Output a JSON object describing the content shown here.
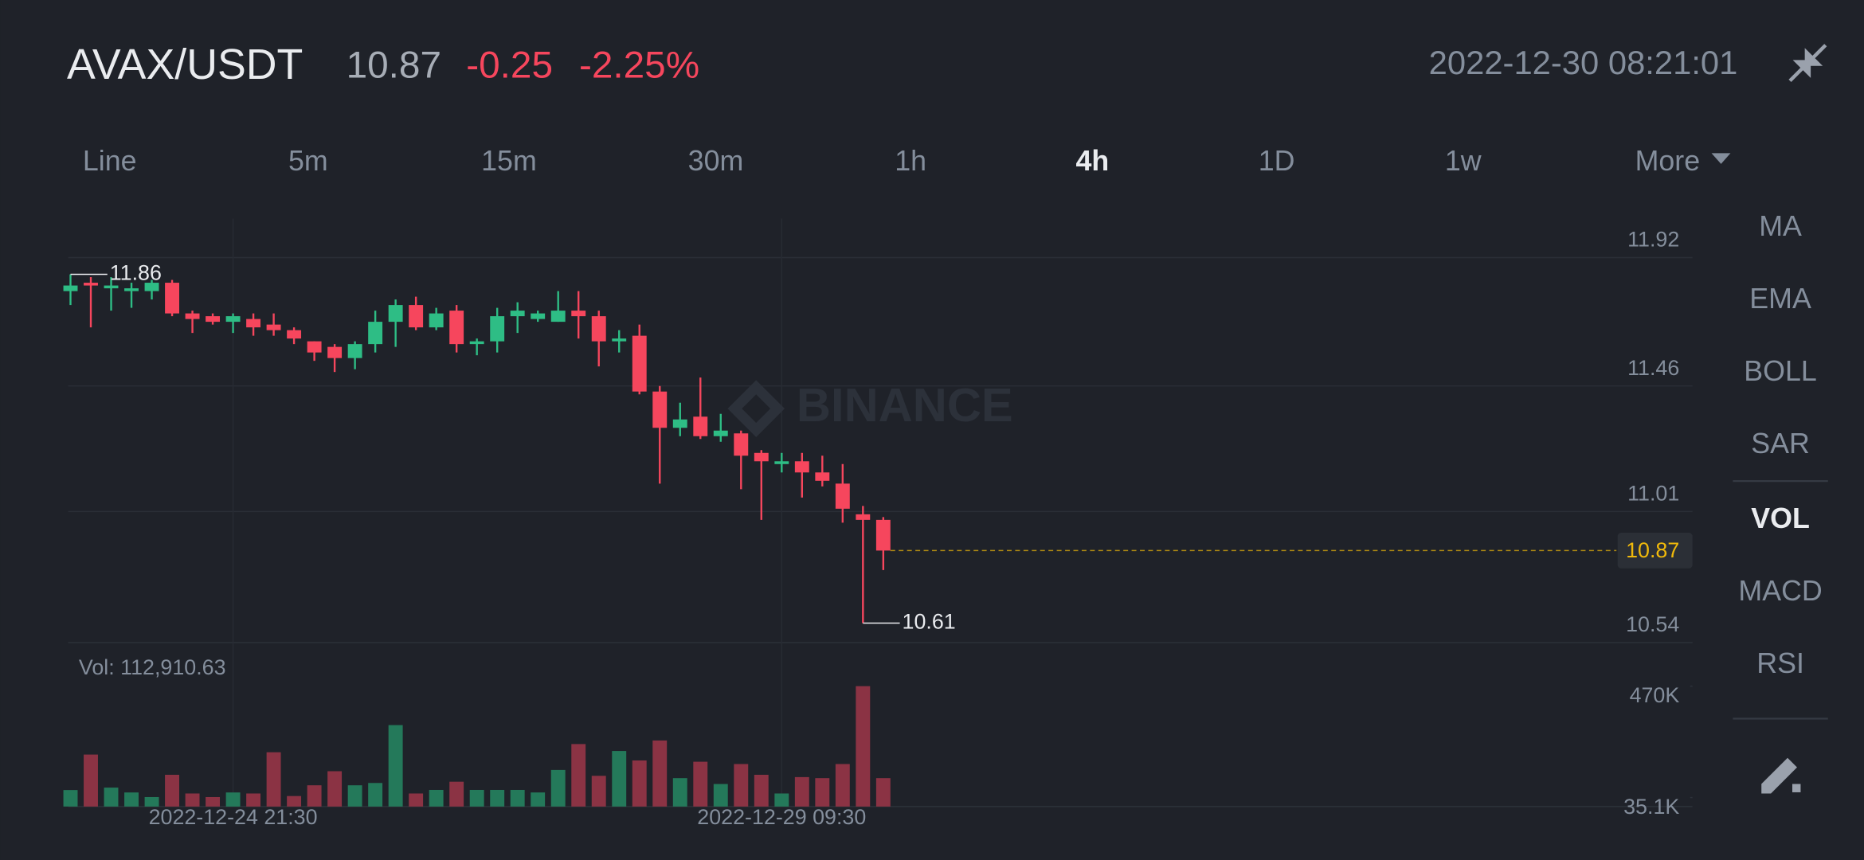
{
  "header": {
    "pair": "AVAX/USDT",
    "price": "10.87",
    "change": "-0.25",
    "change_pct": "-2.25%",
    "datetime": "2022-12-30 08:21:01"
  },
  "tabs": [
    "Line",
    "5m",
    "15m",
    "30m",
    "1h",
    "4h",
    "1D",
    "1w",
    "More"
  ],
  "active_tab": "4h",
  "indicators": [
    "MA",
    "EMA",
    "BOLL",
    "SAR",
    "VOL",
    "MACD",
    "RSI"
  ],
  "active_indicator": "VOL",
  "watermark": "BINANCE",
  "chart_data": [
    {
      "type": "candlestick",
      "categories": [
        null,
        null,
        null,
        null,
        null,
        null,
        null,
        null,
        "2022-12-24 21:30",
        null,
        null,
        null,
        null,
        null,
        null,
        null,
        null,
        null,
        null,
        null,
        null,
        null,
        null,
        null,
        null,
        null,
        null,
        null,
        null,
        null,
        null,
        null,
        null,
        null,
        null,
        "2022-12-29 09:30",
        null,
        null,
        null,
        null,
        null
      ],
      "open": [
        11.8,
        11.83,
        11.81,
        11.8,
        11.8,
        11.83,
        11.72,
        11.71,
        11.69,
        11.7,
        11.68,
        11.66,
        11.62,
        11.6,
        11.56,
        11.61,
        11.69,
        11.75,
        11.67,
        11.73,
        11.61,
        11.62,
        11.71,
        11.7,
        11.69,
        11.73,
        11.71,
        11.62,
        11.64,
        11.44,
        11.31,
        11.35,
        11.28,
        11.29,
        11.22,
        11.18,
        11.19,
        11.15,
        11.11,
        11.0,
        10.98
      ],
      "high": [
        11.86,
        11.85,
        11.85,
        11.83,
        11.84,
        11.84,
        11.73,
        11.72,
        11.72,
        11.72,
        11.72,
        11.67,
        11.62,
        11.61,
        11.62,
        11.73,
        11.77,
        11.78,
        11.74,
        11.75,
        11.63,
        11.74,
        11.76,
        11.73,
        11.8,
        11.8,
        11.73,
        11.66,
        11.68,
        11.46,
        11.4,
        11.49,
        11.36,
        11.3,
        11.23,
        11.22,
        11.22,
        11.21,
        11.18,
        11.03,
        10.99
      ],
      "low": [
        11.75,
        11.67,
        11.73,
        11.74,
        11.77,
        11.71,
        11.65,
        11.68,
        11.65,
        11.64,
        11.64,
        11.61,
        11.55,
        11.51,
        11.52,
        11.58,
        11.6,
        11.66,
        11.66,
        11.58,
        11.57,
        11.58,
        11.65,
        11.69,
        11.69,
        11.63,
        11.53,
        11.58,
        11.43,
        11.11,
        11.28,
        11.27,
        11.26,
        11.09,
        10.98,
        11.15,
        11.06,
        11.1,
        10.97,
        10.61,
        10.8
      ],
      "close": [
        11.82,
        11.82,
        11.82,
        11.81,
        11.83,
        11.72,
        11.7,
        11.69,
        11.71,
        11.67,
        11.66,
        11.63,
        11.58,
        11.56,
        11.61,
        11.69,
        11.75,
        11.67,
        11.72,
        11.61,
        11.62,
        11.71,
        11.73,
        11.72,
        11.73,
        11.71,
        11.62,
        11.63,
        11.44,
        11.31,
        11.34,
        11.28,
        11.3,
        11.21,
        11.19,
        11.19,
        11.15,
        11.12,
        11.02,
        10.98,
        10.87
      ],
      "up_color": "#2ebd85",
      "down_color": "#f6465d",
      "max_label": 11.86,
      "min_label": 10.61,
      "last_price": 10.87,
      "last_color": "#f0b90b",
      "ylim": [
        10.54,
        12.06
      ],
      "yticks": [
        11.92,
        11.46,
        11.01,
        10.54
      ],
      "grid": true
    },
    {
      "type": "bar",
      "title": "Vol: 112,910.63",
      "values": [
        64500,
        203000,
        74000,
        55000,
        37000,
        124000,
        51000,
        37000,
        55000,
        51000,
        212000,
        41000,
        83000,
        138000,
        83000,
        92000,
        318000,
        51000,
        65000,
        97000,
        65000,
        65000,
        65000,
        55000,
        143000,
        244000,
        120000,
        217000,
        180000,
        258000,
        111000,
        175000,
        88000,
        166000,
        124000,
        51000,
        115000,
        111000,
        166000,
        470000,
        111000
      ],
      "up_color": "#24795a",
      "down_color": "#8b3344",
      "ylim": [
        0,
        640000
      ],
      "yticks": [
        {
          "value": 470000,
          "label": "470K"
        },
        {
          "value": 35100,
          "label": "35.1K"
        }
      ]
    }
  ]
}
